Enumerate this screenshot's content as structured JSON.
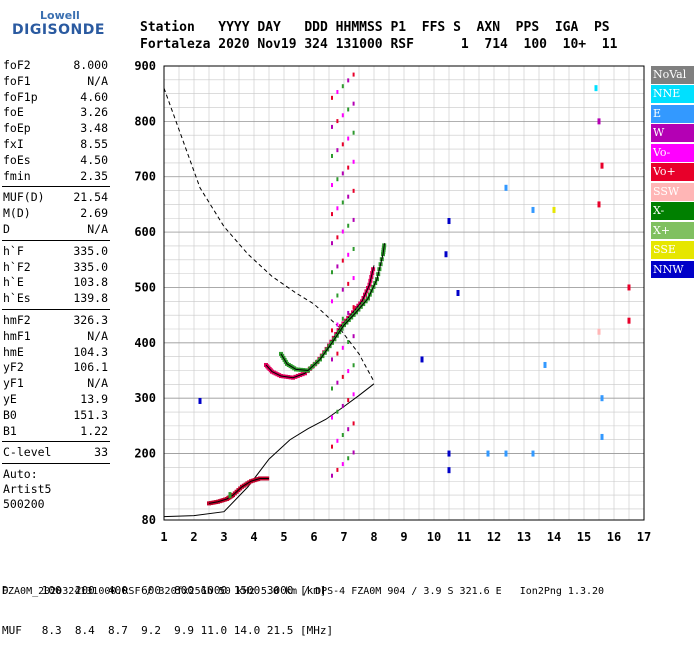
{
  "logo": {
    "line1": "Lowell",
    "line2": "DIGISONDE"
  },
  "header": {
    "row1": "Station   YYYY DAY   DDD HHMMSS P1  FFS S  AXN  PPS  IGA  PS",
    "row2": "Fortaleza 2020 Nov19 324 131000 RSF      1  714  100  10+  11"
  },
  "params": [
    {
      "label": "foF2",
      "value": "8.000"
    },
    {
      "label": "foF1",
      "value": "N/A"
    },
    {
      "label": "foF1p",
      "value": "4.60"
    },
    {
      "label": "foE",
      "value": "3.26"
    },
    {
      "label": "foEp",
      "value": "3.48"
    },
    {
      "label": "fxI",
      "value": "8.55"
    },
    {
      "label": "foEs",
      "value": "4.50"
    },
    {
      "label": "fmin",
      "value": "2.35"
    },
    {
      "label": "MUF(D)",
      "value": "21.54"
    },
    {
      "label": "M(D)",
      "value": "2.69"
    },
    {
      "label": "D",
      "value": "N/A"
    },
    {
      "label": "h`F",
      "value": "335.0"
    },
    {
      "label": "h`F2",
      "value": "335.0"
    },
    {
      "label": "h`E",
      "value": "103.8"
    },
    {
      "label": "h`Es",
      "value": "139.8"
    },
    {
      "label": "hmF2",
      "value": "326.3"
    },
    {
      "label": "hmF1",
      "value": "N/A"
    },
    {
      "label": "hmE",
      "value": "104.3"
    },
    {
      "label": "yF2",
      "value": "106.1"
    },
    {
      "label": "yF1",
      "value": "N/A"
    },
    {
      "label": "yE",
      "value": "13.9"
    },
    {
      "label": "B0",
      "value": "151.3"
    },
    {
      "label": "B1",
      "value": "1.22"
    },
    {
      "label": "C-level",
      "value": "33"
    }
  ],
  "auto": {
    "line1": "Auto:",
    "line2": "Artist5",
    "line3": "500200"
  },
  "legend": [
    {
      "label": "NoVal",
      "color": "#7f7f7f"
    },
    {
      "label": "NNE",
      "color": "#00e0ff"
    },
    {
      "label": "E",
      "color": "#3399ff"
    },
    {
      "label": "W",
      "color": "#b400b4"
    },
    {
      "label": "Vo-",
      "color": "#ff00ff"
    },
    {
      "label": "Vo+",
      "color": "#e8002a"
    },
    {
      "label": "SSW",
      "color": "#ffb6b6"
    },
    {
      "label": "X-",
      "color": "#008000"
    },
    {
      "label": "X+",
      "color": "#80c060"
    },
    {
      "label": "SSE",
      "color": "#e6e600"
    },
    {
      "label": "NNW",
      "color": "#0000c8"
    }
  ],
  "bottom": {
    "row1": "D     100  200  400  600  800 1000 1500 3000 [km]",
    "row2": "MUF   8.3  8.4  8.7  9.2  9.9 11.0 14.0 21.5 [MHz]"
  },
  "footer": "FZA0M_2020324131000.RSF / 320fx256h 50 kHz 5.0 km / DPS-4 FZA0M 904 / 3.9 S 321.6 E   Ion2Png 1.3.20",
  "chart_data": {
    "type": "scatter",
    "x_ticks": [
      1,
      2,
      3,
      4,
      5,
      6,
      7,
      8,
      9,
      10,
      11,
      12,
      13,
      14,
      15,
      16,
      17
    ],
    "y_ticks": [
      80,
      200,
      300,
      400,
      500,
      600,
      700,
      800,
      900
    ],
    "xlim": [
      1,
      17
    ],
    "ylim": [
      80,
      900
    ],
    "grid": true,
    "series": [
      {
        "name": "O-trace",
        "color": "#e0005a",
        "points": [
          [
            4.4,
            360
          ],
          [
            4.6,
            348
          ],
          [
            4.9,
            340
          ],
          [
            5.3,
            337
          ],
          [
            5.7,
            345
          ],
          [
            6.1,
            365
          ],
          [
            6.5,
            395
          ],
          [
            6.9,
            430
          ],
          [
            7.3,
            455
          ],
          [
            7.6,
            475
          ],
          [
            7.85,
            505
          ],
          [
            8.0,
            540
          ]
        ]
      },
      {
        "name": "X-trace",
        "color": "#2e9a2e",
        "points": [
          [
            4.9,
            380
          ],
          [
            5.1,
            362
          ],
          [
            5.4,
            352
          ],
          [
            5.8,
            350
          ],
          [
            6.2,
            370
          ],
          [
            6.6,
            400
          ],
          [
            7.0,
            432
          ],
          [
            7.4,
            455
          ],
          [
            7.8,
            480
          ],
          [
            8.1,
            515
          ],
          [
            8.3,
            560
          ],
          [
            8.35,
            580
          ]
        ]
      },
      {
        "name": "E-trace",
        "color": "#c0002a",
        "points": [
          [
            2.5,
            110
          ],
          [
            2.8,
            113
          ],
          [
            3.1,
            118
          ],
          [
            3.3,
            125
          ],
          [
            3.6,
            140
          ],
          [
            3.9,
            150
          ],
          [
            4.2,
            155
          ],
          [
            4.5,
            155
          ]
        ]
      }
    ],
    "profile": [
      [
        1.0,
        86
      ],
      [
        2.0,
        88
      ],
      [
        3.0,
        95
      ],
      [
        3.8,
        140
      ],
      [
        4.5,
        190
      ],
      [
        5.2,
        225
      ],
      [
        5.8,
        245
      ],
      [
        6.4,
        262
      ],
      [
        7.0,
        285
      ],
      [
        7.5,
        305
      ],
      [
        8.0,
        326
      ]
    ],
    "dashed_profile": [
      [
        1.0,
        860
      ],
      [
        1.6,
        770
      ],
      [
        2.2,
        680
      ],
      [
        3.0,
        610
      ],
      [
        3.8,
        560
      ],
      [
        4.6,
        520
      ],
      [
        5.4,
        490
      ],
      [
        6.0,
        470
      ],
      [
        6.8,
        430
      ],
      [
        7.5,
        380
      ],
      [
        8.0,
        330
      ]
    ]
  }
}
